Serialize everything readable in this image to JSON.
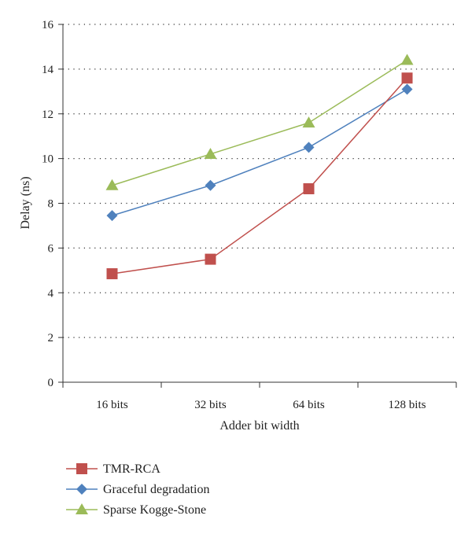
{
  "chart_data": {
    "type": "line",
    "title": "",
    "xlabel": "Adder bit width",
    "ylabel": "Delay (ns)",
    "categories": [
      "16 bits",
      "32 bits",
      "64 bits",
      "128 bits"
    ],
    "ylim": [
      0,
      16
    ],
    "yticks": [
      0,
      2,
      4,
      6,
      8,
      10,
      12,
      14,
      16
    ],
    "grid": "horizontal-dotted",
    "legend_position": "bottom-left",
    "series": [
      {
        "name": "TMR-RCA",
        "values": [
          4.85,
          5.5,
          8.65,
          13.6
        ],
        "color": "#c0504d",
        "marker": "square"
      },
      {
        "name": "Graceful degradation",
        "values": [
          7.45,
          8.8,
          10.5,
          13.1
        ],
        "color": "#4f81bd",
        "marker": "diamond"
      },
      {
        "name": "Sparse Kogge-Stone",
        "values": [
          8.8,
          10.2,
          11.6,
          14.4
        ],
        "color": "#9bbb59",
        "marker": "triangle"
      }
    ]
  }
}
